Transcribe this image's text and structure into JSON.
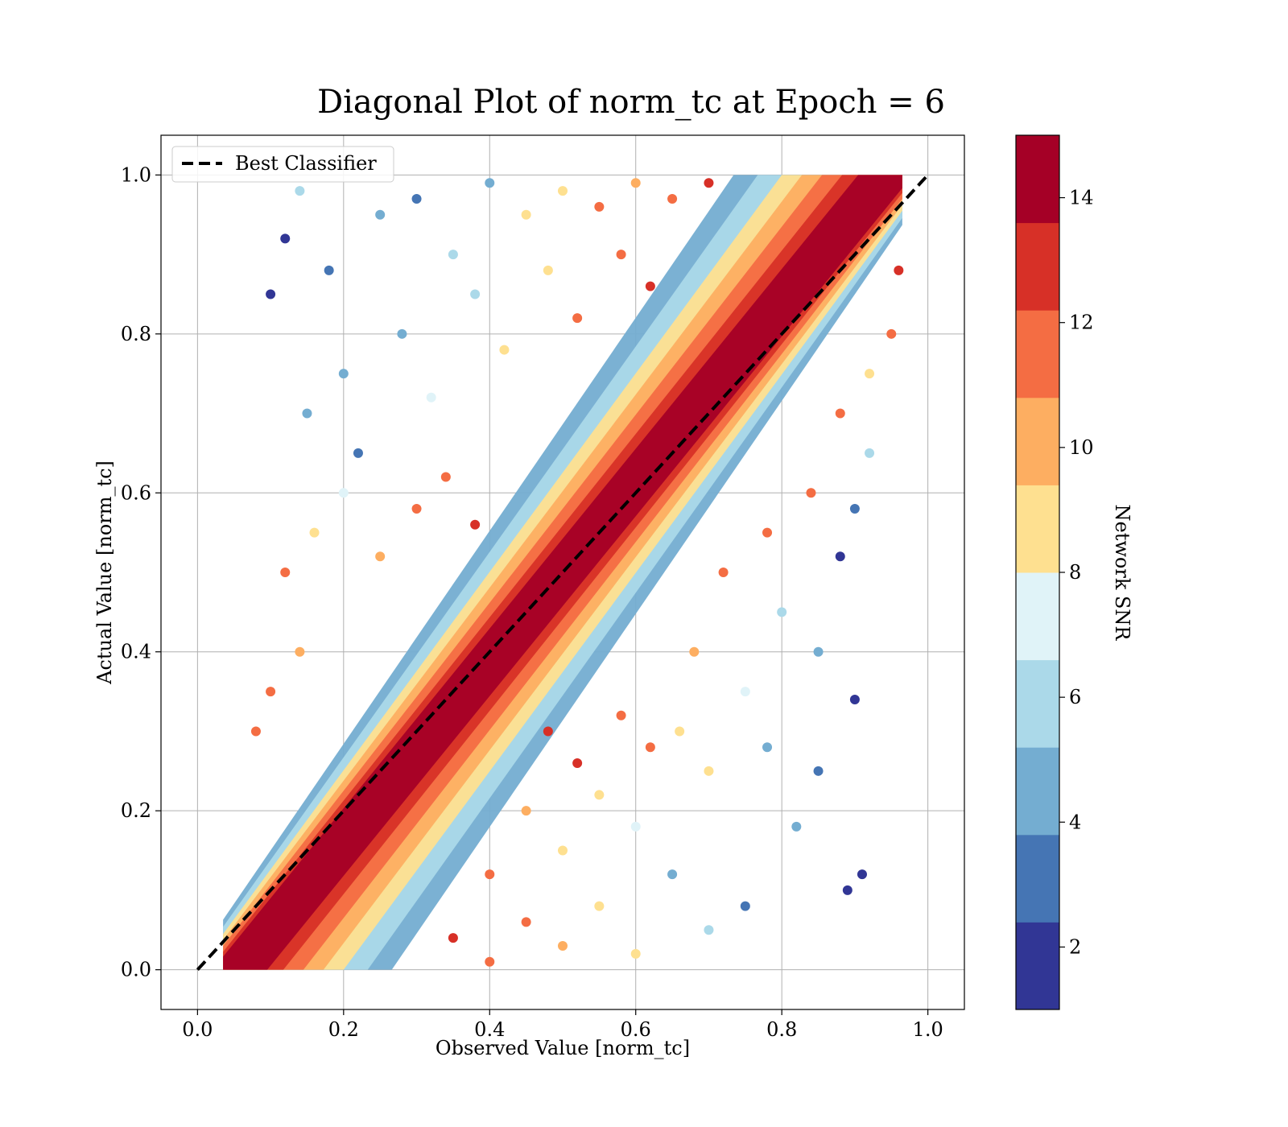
{
  "chart_data": {
    "type": "scatter",
    "title": "Diagonal Plot of norm_tc at Epoch = 6",
    "xlabel": "Observed Value [norm_tc]",
    "ylabel": "Actual Value [norm_tc]",
    "xlim": [
      -0.05,
      1.05
    ],
    "ylim": [
      -0.05,
      1.05
    ],
    "xticks": [
      "0.0",
      "0.2",
      "0.4",
      "0.6",
      "0.8",
      "1.0"
    ],
    "yticks": [
      "0.0",
      "0.2",
      "0.4",
      "0.6",
      "0.8",
      "1.0"
    ],
    "grid": true,
    "legend": {
      "position": "upper-left",
      "entries": [
        "Best Classifier"
      ]
    },
    "reference_line": {
      "name": "Best Classifier",
      "style": "dashed",
      "color": "#000000",
      "x": [
        0.0,
        1.0
      ],
      "y": [
        0.0,
        1.0
      ]
    },
    "colorbar": {
      "label": "Network SNR",
      "range": [
        1,
        15
      ],
      "ticks": [
        "2",
        "4",
        "6",
        "8",
        "10",
        "12",
        "14"
      ],
      "tick_values": [
        2,
        4,
        6,
        8,
        10,
        12,
        14
      ],
      "colors": [
        "#313695",
        "#4575b4",
        "#74add1",
        "#abd9e9",
        "#e0f3f8",
        "#fee090",
        "#fdae61",
        "#f46d43",
        "#d73027",
        "#a50026"
      ]
    },
    "scatter": {
      "note_region": "points cluster along the diagonal; high SNR (dark red) near diagonal, lower SNR spread farther",
      "points": [
        [
          0.1,
          0.85,
          2
        ],
        [
          0.12,
          0.92,
          2
        ],
        [
          0.14,
          0.98,
          6
        ],
        [
          0.18,
          0.88,
          3
        ],
        [
          0.2,
          0.75,
          5
        ],
        [
          0.25,
          0.95,
          4
        ],
        [
          0.3,
          0.97,
          3
        ],
        [
          0.35,
          0.9,
          6
        ],
        [
          0.4,
          0.99,
          5
        ],
        [
          0.45,
          0.95,
          8
        ],
        [
          0.5,
          0.98,
          9
        ],
        [
          0.55,
          0.96,
          11
        ],
        [
          0.6,
          0.99,
          10
        ],
        [
          0.65,
          0.97,
          12
        ],
        [
          0.7,
          0.99,
          13
        ],
        [
          0.15,
          0.7,
          4
        ],
        [
          0.22,
          0.65,
          3
        ],
        [
          0.28,
          0.8,
          5
        ],
        [
          0.32,
          0.72,
          7
        ],
        [
          0.38,
          0.85,
          6
        ],
        [
          0.42,
          0.78,
          8
        ],
        [
          0.48,
          0.88,
          9
        ],
        [
          0.52,
          0.82,
          11
        ],
        [
          0.58,
          0.9,
          12
        ],
        [
          0.62,
          0.86,
          13
        ],
        [
          0.12,
          0.5,
          12
        ],
        [
          0.16,
          0.55,
          9
        ],
        [
          0.2,
          0.6,
          7
        ],
        [
          0.25,
          0.52,
          10
        ],
        [
          0.3,
          0.58,
          11
        ],
        [
          0.34,
          0.62,
          12
        ],
        [
          0.38,
          0.56,
          13
        ],
        [
          0.1,
          0.35,
          11
        ],
        [
          0.14,
          0.4,
          10
        ],
        [
          0.08,
          0.3,
          12
        ],
        [
          0.9,
          0.34,
          2
        ],
        [
          0.91,
          0.12,
          2
        ],
        [
          0.89,
          0.1,
          2
        ],
        [
          0.85,
          0.25,
          3
        ],
        [
          0.82,
          0.18,
          5
        ],
        [
          0.78,
          0.28,
          4
        ],
        [
          0.75,
          0.08,
          3
        ],
        [
          0.7,
          0.05,
          6
        ],
        [
          0.65,
          0.12,
          5
        ],
        [
          0.6,
          0.02,
          8
        ],
        [
          0.55,
          0.08,
          9
        ],
        [
          0.5,
          0.03,
          10
        ],
        [
          0.45,
          0.06,
          11
        ],
        [
          0.4,
          0.01,
          12
        ],
        [
          0.35,
          0.04,
          13
        ],
        [
          0.85,
          0.4,
          4
        ],
        [
          0.8,
          0.45,
          6
        ],
        [
          0.88,
          0.52,
          2
        ],
        [
          0.9,
          0.58,
          3
        ],
        [
          0.92,
          0.65,
          6
        ],
        [
          0.75,
          0.35,
          7
        ],
        [
          0.7,
          0.25,
          8
        ],
        [
          0.68,
          0.4,
          10
        ],
        [
          0.72,
          0.5,
          11
        ],
        [
          0.78,
          0.55,
          12
        ],
        [
          0.84,
          0.6,
          11
        ],
        [
          0.88,
          0.7,
          12
        ],
        [
          0.92,
          0.75,
          9
        ],
        [
          0.95,
          0.8,
          12
        ],
        [
          0.96,
          0.88,
          13
        ],
        [
          0.6,
          0.18,
          7
        ],
        [
          0.55,
          0.22,
          9
        ],
        [
          0.5,
          0.15,
          8
        ],
        [
          0.45,
          0.2,
          10
        ],
        [
          0.4,
          0.12,
          11
        ],
        [
          0.66,
          0.3,
          9
        ],
        [
          0.62,
          0.28,
          11
        ],
        [
          0.58,
          0.32,
          12
        ],
        [
          0.52,
          0.26,
          13
        ],
        [
          0.48,
          0.3,
          13
        ]
      ]
    }
  }
}
